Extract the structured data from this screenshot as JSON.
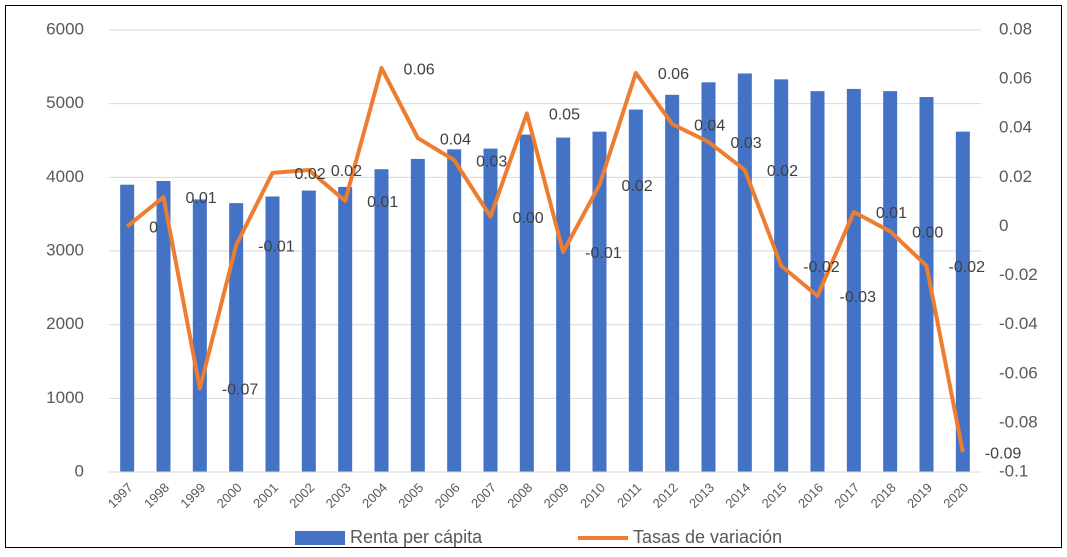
{
  "chart_data": {
    "type": "bar",
    "categories": [
      "1997",
      "1998",
      "1999",
      "2000",
      "2001",
      "2002",
      "2003",
      "2004",
      "2005",
      "2006",
      "2007",
      "2008",
      "2009",
      "2010",
      "2011",
      "2012",
      "2013",
      "2014",
      "2015",
      "2016",
      "2017",
      "2018",
      "2019",
      "2020"
    ],
    "series": [
      {
        "name": "Renta per cápita",
        "type": "bar",
        "color": "#4472c4",
        "axis": "y",
        "values": [
          3900,
          3950,
          3700,
          3650,
          3740,
          3820,
          3870,
          4110,
          4250,
          4380,
          4390,
          4580,
          4540,
          4620,
          4920,
          5120,
          5290,
          5410,
          5330,
          5170,
          5200,
          5170,
          5090,
          4620
        ]
      },
      {
        "name": "Tasas de variación",
        "type": "line",
        "color": "#ed7d31",
        "axis": "y2",
        "values": [
          0,
          0.012,
          -0.066,
          -0.0076,
          0.0218,
          0.023,
          0.0104,
          0.0645,
          0.036,
          0.027,
          0.004,
          0.046,
          -0.0104,
          0.0169,
          0.0625,
          0.0417,
          0.0344,
          0.023,
          -0.016,
          -0.0283,
          0.0059,
          -0.002,
          -0.016,
          -0.0919
        ],
        "value_labels": [
          "0",
          "0.01",
          "-0.07",
          "-0.01",
          "0.02",
          "0.02",
          "0.01",
          "0.06",
          "0.04",
          "0.03",
          "0.00",
          "0.05",
          "-0.01",
          "0.02",
          "0.06",
          "0.04",
          "0.03",
          "0.02",
          "-0.02",
          "-0.03",
          "0.01",
          "0.00",
          "-0.02",
          "-0.09"
        ]
      }
    ],
    "ylim": [
      0,
      6000
    ],
    "yticks": [
      0,
      1000,
      2000,
      3000,
      4000,
      5000,
      6000
    ],
    "y2lim": [
      -0.1,
      0.08
    ],
    "y2ticks": [
      -0.1,
      -0.08,
      -0.06,
      -0.04,
      -0.02,
      0,
      0.02,
      0.04,
      0.06,
      0.08
    ],
    "grid": true,
    "legend": "bottom"
  }
}
